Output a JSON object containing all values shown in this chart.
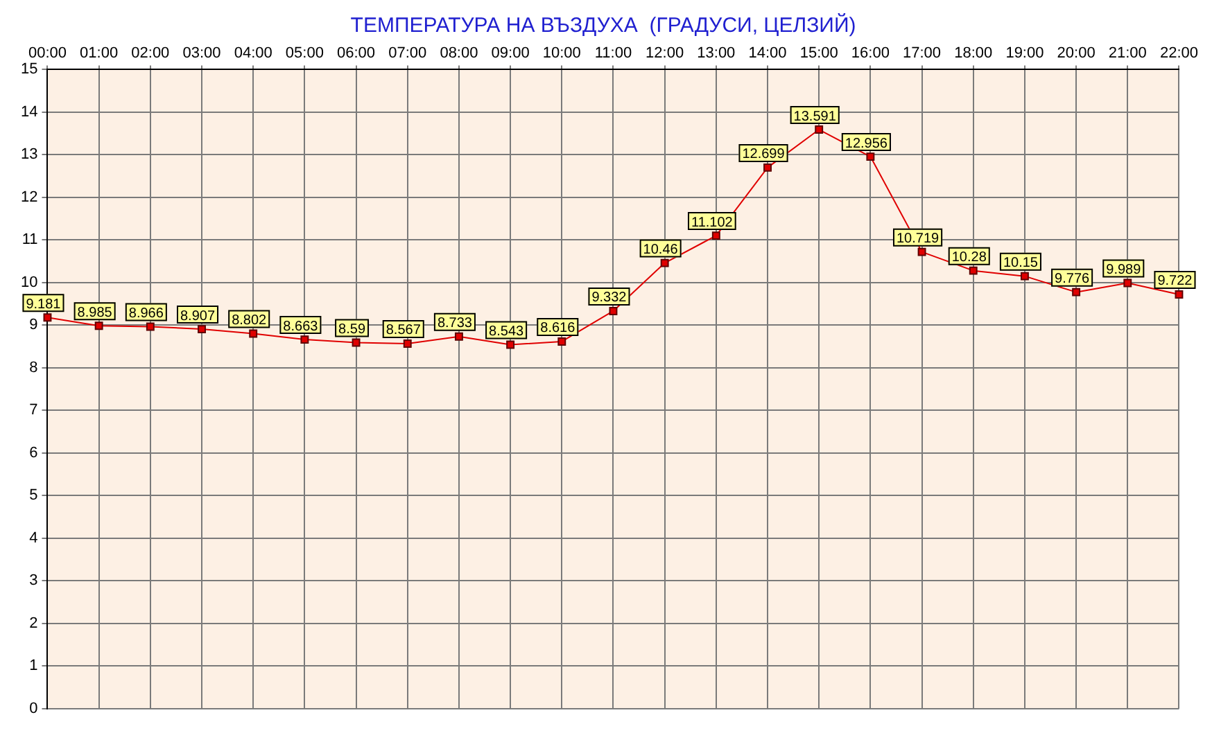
{
  "chart_data": {
    "type": "line",
    "title": "ТЕМПЕРАТУРА НА ВЪЗДУХА  (ГРАДУСИ, ЦЕЛЗИЙ)",
    "categories": [
      "00:00",
      "01:00",
      "02:00",
      "03:00",
      "04:00",
      "05:00",
      "06:00",
      "07:00",
      "08:00",
      "09:00",
      "10:00",
      "11:00",
      "12:00",
      "13:00",
      "14:00",
      "15:00",
      "16:00",
      "17:00",
      "18:00",
      "19:00",
      "20:00",
      "21:00",
      "22:00"
    ],
    "series": [
      {
        "color": "#e00000",
        "values": [
          9.181,
          8.985,
          8.966,
          8.907,
          8.802,
          8.663,
          8.59,
          8.567,
          8.733,
          8.543,
          8.616,
          9.332,
          10.46,
          11.102,
          12.699,
          13.591,
          12.956,
          10.719,
          10.28,
          10.15,
          9.776,
          9.989,
          9.722
        ]
      }
    ],
    "ylim": [
      0,
      15
    ],
    "yticks": [
      0,
      1,
      2,
      3,
      4,
      5,
      6,
      7,
      8,
      9,
      10,
      11,
      12,
      13,
      14,
      15
    ],
    "grid": true,
    "marker": "square",
    "line_style": "solid",
    "data_labels": true,
    "legend": false
  }
}
